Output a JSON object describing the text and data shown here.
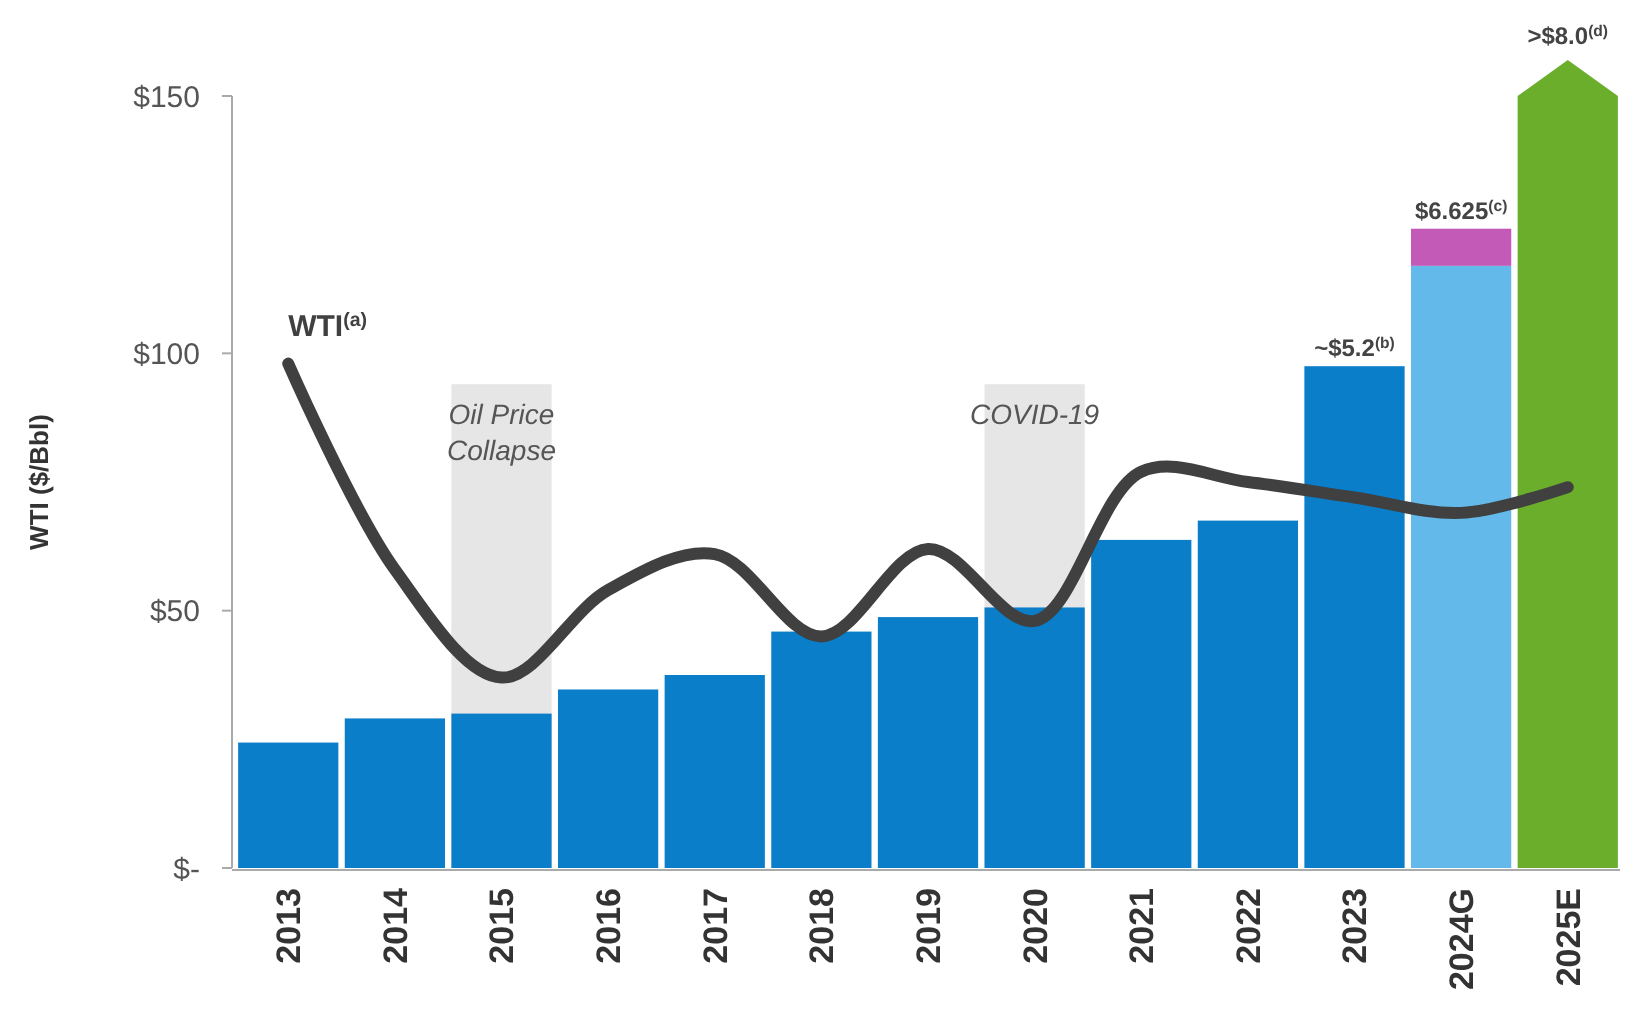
{
  "chart_data": {
    "type": "bar",
    "ylabel": "WTI ($/Bbl)",
    "categories": [
      "2013",
      "2014",
      "2015",
      "2016",
      "2017",
      "2018",
      "2019",
      "2020",
      "2021",
      "2022",
      "2023",
      "2024G",
      "2025E"
    ],
    "stacked": true,
    "legend": false,
    "grid": false,
    "series": [
      {
        "axis": "y2",
        "colors": [
          "#0a7ec8",
          "#0a7ec8",
          "#0a7ec8",
          "#0a7ec8",
          "#0a7ec8",
          "#0a7ec8",
          "#0a7ec8",
          "#0a7ec8",
          "#0a7ec8",
          "#0a7ec8",
          "#0a7ec8",
          "#62b9ea",
          "#6aae2c"
        ],
        "values": [
          1.3,
          1.55,
          1.6,
          1.85,
          2.0,
          2.45,
          2.6,
          2.7,
          3.4,
          3.6,
          5.2,
          6.24,
          8.0
        ],
        "value_labels": [
          null,
          null,
          null,
          null,
          null,
          null,
          null,
          null,
          null,
          null,
          "~$5.2$^{(b)}$",
          null,
          ">$8.0$^{(d)}$"
        ]
      },
      {
        "axis": "y2",
        "color": "#c45ab8",
        "values": [
          null,
          null,
          null,
          null,
          null,
          null,
          null,
          null,
          null,
          null,
          null,
          0.385,
          null
        ]
      },
      {
        "type": "line",
        "name": "WTI$^{(a)}$",
        "color": "#404040",
        "values": [
          98,
          58,
          37,
          54,
          61,
          45,
          62,
          48,
          77,
          75,
          72,
          69,
          74
        ]
      }
    ],
    "ylim": [
      0,
      150
    ],
    "yticks": [
      {
        "value": 0,
        "label": "$-"
      },
      {
        "value": 50,
        "label": "$50"
      },
      {
        "value": 100,
        "label": "$100"
      },
      {
        "value": 150,
        "label": "$150"
      }
    ],
    "y2lim": [
      0,
      8
    ],
    "totals": [
      null,
      null,
      null,
      null,
      null,
      null,
      null,
      null,
      null,
      null,
      null,
      "$6.625$^{(c)}$",
      null
    ],
    "bands": [
      {
        "axis": "x",
        "from": "2015",
        "to": "2015",
        "label": "Oil Price Collapse",
        "color": "#e6e6e6"
      },
      {
        "axis": "x",
        "from": "2020",
        "to": "2020",
        "label": "COVID-19",
        "color": "#e6e6e6"
      }
    ]
  }
}
